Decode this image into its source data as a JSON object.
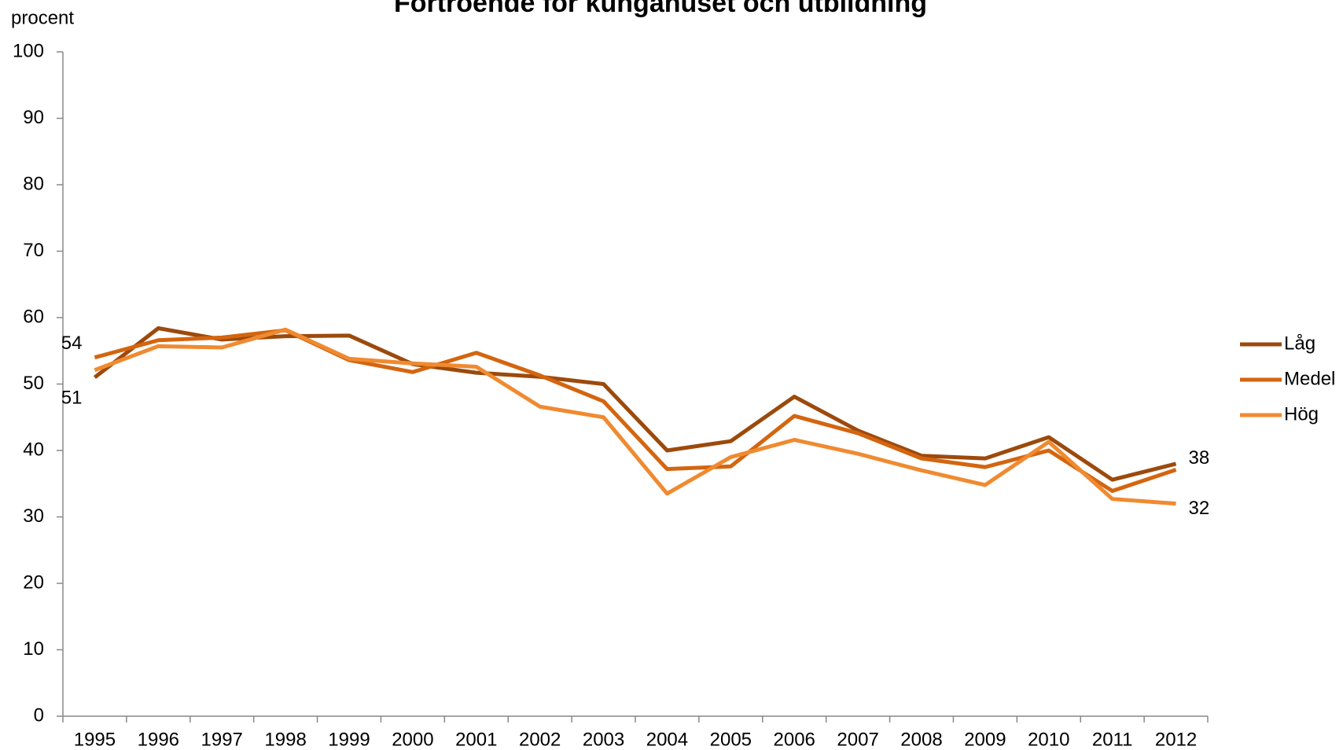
{
  "chart_data": {
    "type": "line",
    "title": "Förtroende för kungahuset och utbildning",
    "y_label": "procent",
    "categories": [
      "1995",
      "1996",
      "1997",
      "1998",
      "1999",
      "2000",
      "2001",
      "2002",
      "2003",
      "2004",
      "2005",
      "2006",
      "2007",
      "2008",
      "2009",
      "2010",
      "2011",
      "2012"
    ],
    "series": [
      {
        "name": "Låg",
        "color": "#9c4a0c",
        "values": [
          51,
          58.4,
          56.7,
          57.2,
          57.3,
          53.0,
          51.7,
          51.1,
          50.0,
          40.0,
          41.4,
          48.1,
          43.0,
          39.2,
          38.8,
          42.0,
          35.6,
          38
        ]
      },
      {
        "name": "Medel",
        "color": "#d4650f",
        "values": [
          54,
          56.6,
          57.0,
          58.1,
          53.6,
          51.8,
          54.7,
          51.3,
          47.4,
          37.2,
          37.6,
          45.2,
          42.6,
          38.8,
          37.5,
          40.0,
          33.9,
          37.1
        ]
      },
      {
        "name": "Hög",
        "color": "#f08a30",
        "values": [
          52.1,
          55.7,
          55.5,
          58.2,
          53.8,
          53.1,
          52.6,
          46.6,
          45.0,
          33.5,
          39.0,
          41.6,
          39.5,
          37.0,
          34.8,
          41.3,
          32.7,
          32
        ]
      }
    ],
    "ylim": [
      0,
      100
    ],
    "yticks": [
      0,
      10,
      20,
      30,
      40,
      50,
      60,
      70,
      80,
      90,
      100
    ],
    "grid": false,
    "legend": "right"
  }
}
